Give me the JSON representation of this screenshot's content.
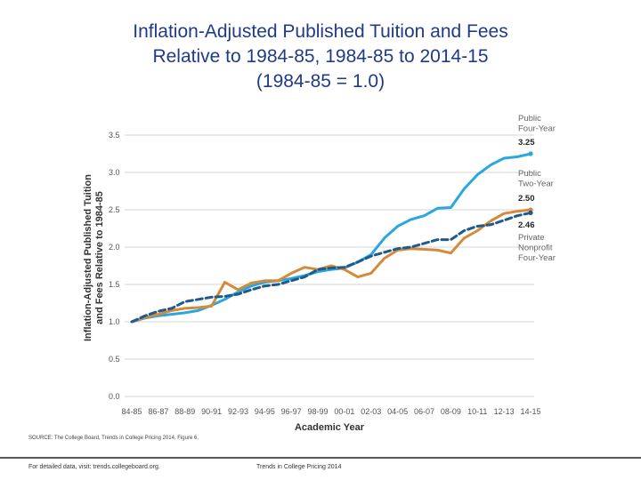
{
  "slide": {
    "title_lines": [
      "Inflation-Adjusted Published Tuition and Fees",
      "Relative to 1984-85, 1984-85 to 2014-15",
      "(1984-85 = 1.0)"
    ]
  },
  "source_text": "SOURCE: The College Board, Trends in College Pricing 2014, Figure 6.",
  "footer": {
    "left": "For detailed data, visit: trends.collegeboard.org.",
    "right": "Trends in College Pricing 2014"
  },
  "colors": {
    "public_four_year": "#2aa7df",
    "public_two_year": "#d58a3a",
    "private_nonprofit": "#1e5b8c",
    "grid": "#d4d4d4"
  },
  "chart_data": {
    "type": "line",
    "xlabel": "Academic Year",
    "ylabel": "Inflation-Adjusted Published Tuition and Fees Relative to 1984-85",
    "ylim": [
      0,
      3.5
    ],
    "yticks": [
      "0.0",
      "0.5",
      "1.0",
      "1.5",
      "2.0",
      "2.5",
      "3.0",
      "3.5"
    ],
    "grid": "horizontal",
    "x": [
      "84-85",
      "85-86",
      "86-87",
      "87-88",
      "88-89",
      "89-90",
      "90-91",
      "91-92",
      "92-93",
      "93-94",
      "94-95",
      "95-96",
      "96-97",
      "97-98",
      "98-99",
      "99-00",
      "00-01",
      "01-02",
      "02-03",
      "03-04",
      "04-05",
      "05-06",
      "06-07",
      "07-08",
      "08-09",
      "09-10",
      "10-11",
      "11-12",
      "12-13",
      "13-14",
      "14-15"
    ],
    "xticks": [
      "84-85",
      "86-87",
      "88-89",
      "90-91",
      "92-93",
      "94-95",
      "96-97",
      "98-99",
      "00-01",
      "02-03",
      "04-05",
      "06-07",
      "08-09",
      "10-11",
      "12-13",
      "14-15"
    ],
    "series": [
      {
        "name": "Public Four-Year",
        "end_value": "3.25",
        "values": [
          1.0,
          1.05,
          1.08,
          1.1,
          1.12,
          1.15,
          1.22,
          1.3,
          1.4,
          1.48,
          1.53,
          1.55,
          1.58,
          1.62,
          1.67,
          1.7,
          1.72,
          1.8,
          1.9,
          2.12,
          2.28,
          2.37,
          2.42,
          2.52,
          2.53,
          2.78,
          2.97,
          3.1,
          3.19,
          3.21,
          3.25
        ]
      },
      {
        "name": "Public Two-Year",
        "end_value": "2.50",
        "values": [
          1.0,
          1.06,
          1.1,
          1.15,
          1.18,
          1.19,
          1.21,
          1.53,
          1.43,
          1.52,
          1.55,
          1.55,
          1.65,
          1.73,
          1.7,
          1.75,
          1.7,
          1.6,
          1.65,
          1.85,
          1.96,
          1.98,
          1.97,
          1.96,
          1.92,
          2.12,
          2.22,
          2.35,
          2.45,
          2.48,
          2.5
        ]
      },
      {
        "name": "Private Nonprofit Four-Year",
        "end_value": "2.46",
        "values": [
          1.0,
          1.08,
          1.14,
          1.18,
          1.27,
          1.3,
          1.33,
          1.34,
          1.37,
          1.43,
          1.48,
          1.5,
          1.55,
          1.6,
          1.7,
          1.72,
          1.73,
          1.8,
          1.88,
          1.93,
          1.98,
          2.0,
          2.05,
          2.1,
          2.1,
          2.22,
          2.28,
          2.3,
          2.36,
          2.42,
          2.46
        ]
      }
    ],
    "end_labels": [
      {
        "lines": [
          "Public",
          "Four-Year"
        ],
        "value": "3.25"
      },
      {
        "lines": [
          "Public",
          "Two-Year"
        ],
        "value": "2.50"
      },
      {
        "lines": [
          "Private",
          "Nonprofit",
          "Four-Year"
        ],
        "value": "2.46"
      }
    ]
  }
}
